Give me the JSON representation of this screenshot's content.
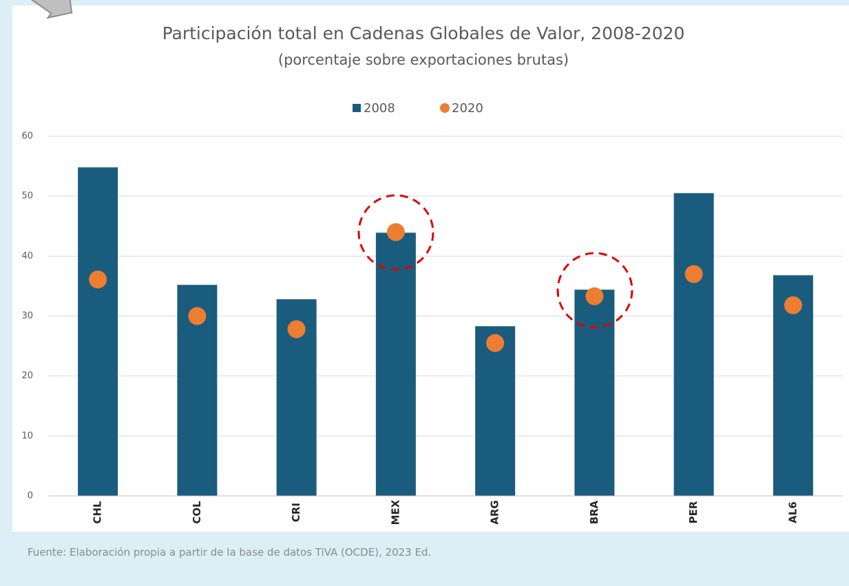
{
  "chart_data": {
    "type": "bar",
    "title": "Participación total en Cadenas Globales de Valor, 2008-2020",
    "subtitle": "(porcentaje sobre exportaciones brutas)",
    "categories": [
      "CHL",
      "COL",
      "CRI",
      "MEX",
      "ARG",
      "BRA",
      "PER",
      "AL6"
    ],
    "series": [
      {
        "name": "2008",
        "type": "bar",
        "color": "#1a5c7d",
        "values": [
          54.8,
          35.2,
          32.8,
          43.9,
          28.3,
          34.4,
          50.5,
          36.8
        ]
      },
      {
        "name": "2020",
        "type": "scatter",
        "color": "#ed7d31",
        "values": [
          36.1,
          30.0,
          27.8,
          44.0,
          25.5,
          33.3,
          37.0,
          31.8
        ]
      }
    ],
    "ylim": [
      0,
      60
    ],
    "yticks": [
      0,
      10,
      20,
      30,
      40,
      50,
      60
    ],
    "grid": true,
    "legend": "top",
    "source": "Fuente: Elaboración propia a partir de la base de datos TiVA (OCDE), 2023 Ed."
  }
}
